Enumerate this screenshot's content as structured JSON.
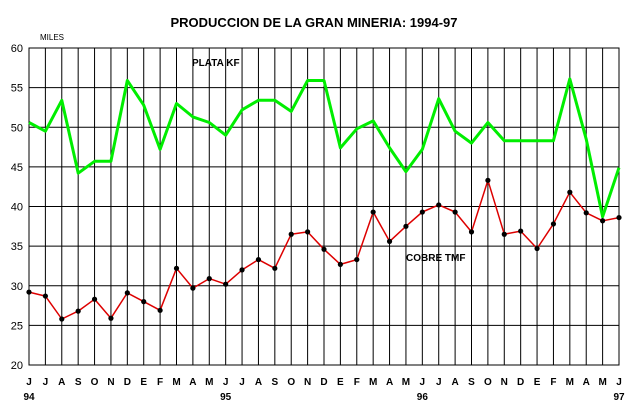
{
  "chart_data": {
    "type": "line",
    "title": "PRODUCCION DE LA GRAN MINERIA: 1994-97",
    "unit_label": "MILES",
    "ylim": [
      20,
      60
    ],
    "y_ticks": [
      "20",
      "25",
      "30",
      "35",
      "40",
      "45",
      "50",
      "55",
      "60"
    ],
    "categories": [
      "J",
      "J",
      "A",
      "S",
      "O",
      "N",
      "D",
      "E",
      "F",
      "M",
      "A",
      "M",
      "J",
      "J",
      "A",
      "S",
      "O",
      "N",
      "D",
      "E",
      "F",
      "M",
      "A",
      "M",
      "J",
      "J",
      "A",
      "S",
      "O",
      "N",
      "D",
      "E",
      "F",
      "M",
      "A",
      "M",
      "J"
    ],
    "year_labels": [
      {
        "index": 0,
        "label": "94"
      },
      {
        "index": 12,
        "label": "95"
      },
      {
        "index": 24,
        "label": "96"
      },
      {
        "index": 36,
        "label": "97"
      }
    ],
    "grid": true,
    "series": [
      {
        "name": "PLATA KF",
        "color": "#00ee00",
        "values": [
          50.6,
          49.5,
          53.4,
          44.2,
          45.7,
          45.7,
          55.9,
          52.8,
          47.2,
          53.0,
          51.3,
          50.6,
          49.0,
          52.2,
          53.4,
          53.4,
          52.0,
          55.9,
          55.9,
          47.4,
          49.8,
          50.8,
          47.4,
          44.4,
          47.2,
          53.6,
          49.5,
          48.0,
          50.6,
          48.3,
          48.3,
          48.3,
          48.3,
          56.1,
          48.5,
          38.7,
          44.9
        ]
      },
      {
        "name": "COBRE TMF",
        "color": "#dd0000",
        "values": [
          29.2,
          28.7,
          25.8,
          26.8,
          28.3,
          25.9,
          29.1,
          28.0,
          26.9,
          32.2,
          29.7,
          30.9,
          30.2,
          32.0,
          33.3,
          32.2,
          36.5,
          36.8,
          34.6,
          32.7,
          33.3,
          39.3,
          35.6,
          37.5,
          39.3,
          40.2,
          39.3,
          36.8,
          43.3,
          36.5,
          36.9,
          34.7,
          37.8,
          41.8,
          39.2,
          38.2,
          38.6
        ]
      }
    ]
  }
}
